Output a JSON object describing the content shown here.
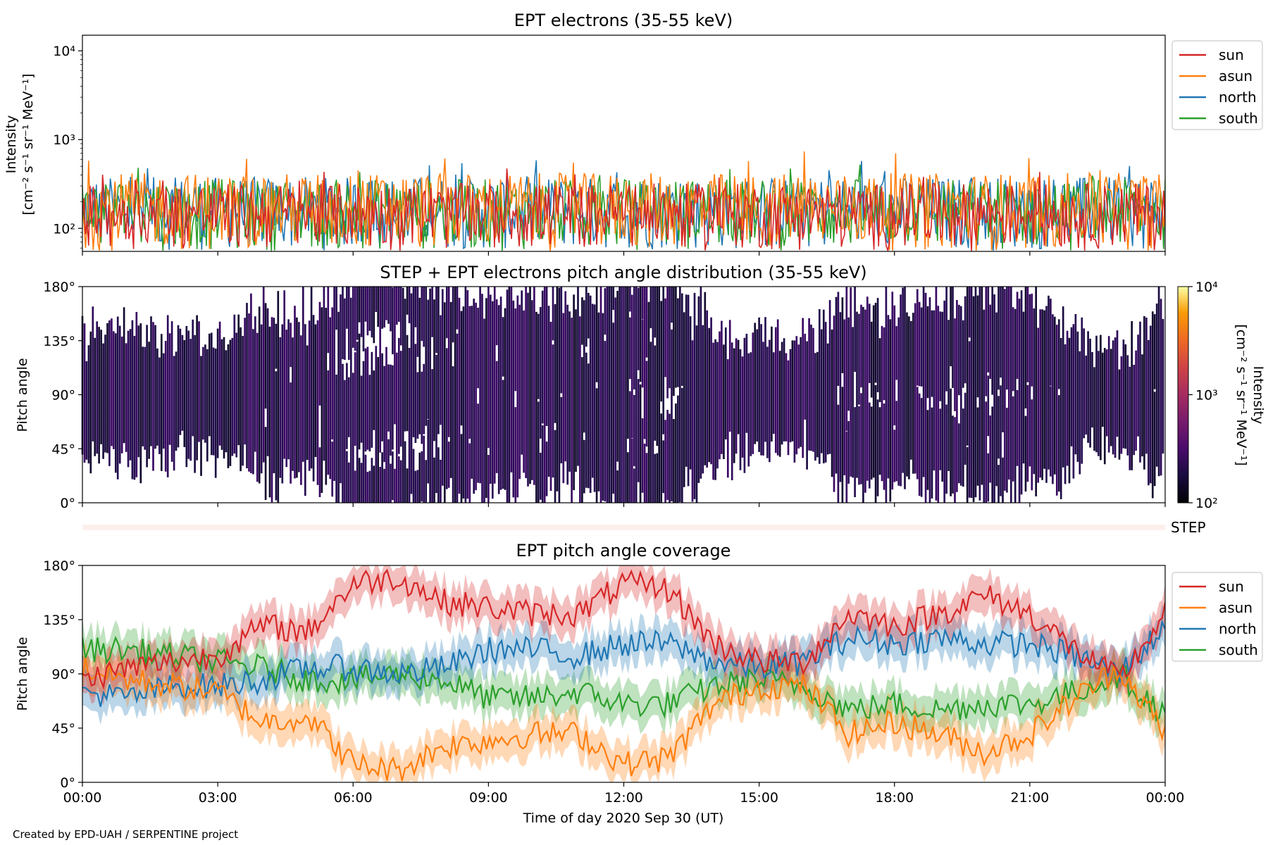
{
  "chart_data": [
    {
      "type": "line",
      "title": "EPT electrons (35-55 keV)",
      "ylabel": [
        "Intensity",
        "[cm⁻² s⁻¹ sr⁻¹ MeV⁻¹]"
      ],
      "yscale": "log",
      "ylim": [
        55,
        15000
      ],
      "yticks": [
        {
          "value": 100,
          "label": "10²"
        },
        {
          "value": 1000,
          "label": "10³"
        },
        {
          "value": 10000,
          "label": "10⁴"
        }
      ],
      "xlim": [
        "2020-09-30 00:00",
        "2020-10-01 00:00"
      ],
      "legend": {
        "placement": "right, outside top",
        "entries": [
          "sun",
          "asun",
          "north",
          "south"
        ]
      },
      "series": [
        {
          "name": "sun",
          "color": "#d62728",
          "typical_range": [
            55,
            320
          ],
          "peak": 480
        },
        {
          "name": "asun",
          "color": "#ff7f0e",
          "typical_range": [
            55,
            420
          ],
          "peak": 760
        },
        {
          "name": "north",
          "color": "#1f77b4",
          "typical_range": [
            55,
            380
          ],
          "peak": 600
        },
        {
          "name": "south",
          "color": "#2ca02c",
          "typical_range": [
            55,
            360
          ],
          "peak": 560
        }
      ]
    },
    {
      "type": "heatmap",
      "title": "STEP + EPT electrons pitch angle distribution (35-55 keV)",
      "ylabel": "Pitch angle",
      "ylim": [
        0,
        180
      ],
      "yticks": [
        "0°",
        "45°",
        "90°",
        "135°",
        "180°"
      ],
      "xlim": [
        "2020-09-30 00:00",
        "2020-10-01 00:00"
      ],
      "colorbar": {
        "label": [
          "Intensity",
          "[cm⁻² s⁻¹ sr⁻¹ MeV⁻¹]"
        ],
        "scale": "log",
        "range": [
          100,
          10000
        ],
        "ticks": [
          "10²",
          "10³",
          "10⁴"
        ],
        "colormap": "inferno"
      },
      "note": "dark purple bands of ~10² intensity tracing the four EPT telescope pitch angles"
    },
    {
      "type": "line",
      "label": "STEP",
      "note": "thin pale strip, no data drawn"
    },
    {
      "type": "line",
      "title": "EPT pitch angle coverage",
      "ylabel": "Pitch angle",
      "ylim": [
        0,
        180
      ],
      "yticks": [
        "0°",
        "45°",
        "90°",
        "135°",
        "180°"
      ],
      "xlim": [
        "2020-09-30 00:00",
        "2020-10-01 00:00"
      ],
      "x": [
        0,
        1,
        2,
        3,
        4,
        5,
        6,
        7,
        8,
        9,
        10,
        11,
        12,
        13,
        14,
        15,
        16,
        17,
        18,
        19,
        20,
        21,
        22,
        23,
        24
      ],
      "x_unit": "hours since 2020-09-30 00:00",
      "band": "shaded band of about ±15° around each line",
      "legend": {
        "placement": "right, outside top",
        "entries": [
          "sun",
          "asun",
          "north",
          "south"
        ]
      },
      "series": [
        {
          "name": "sun",
          "color": "#d62728",
          "values": [
            85,
            95,
            100,
            105,
            130,
            125,
            165,
            170,
            150,
            145,
            140,
            140,
            165,
            160,
            115,
            100,
            100,
            140,
            130,
            140,
            155,
            140,
            110,
            85,
            140
          ]
        },
        {
          "name": "asun",
          "color": "#ff7f0e",
          "values": [
            95,
            85,
            80,
            75,
            50,
            55,
            15,
            10,
            30,
            35,
            40,
            40,
            15,
            20,
            65,
            80,
            80,
            40,
            50,
            40,
            25,
            40,
            70,
            95,
            40
          ]
        },
        {
          "name": "north",
          "color": "#1f77b4",
          "values": [
            75,
            70,
            80,
            80,
            85,
            95,
            95,
            90,
            95,
            110,
            110,
            105,
            115,
            115,
            100,
            95,
            100,
            120,
            115,
            120,
            115,
            115,
            105,
            90,
            130
          ]
        },
        {
          "name": "south",
          "color": "#2ca02c",
          "values": [
            110,
            110,
            105,
            100,
            95,
            85,
            85,
            90,
            85,
            70,
            70,
            75,
            65,
            65,
            80,
            85,
            80,
            60,
            65,
            60,
            65,
            65,
            75,
            90,
            55
          ]
        }
      ]
    }
  ],
  "xaxis": {
    "label": "Time of day 2020 Sep 30 (UT)",
    "ticks": [
      "00:00",
      "03:00",
      "06:00",
      "09:00",
      "12:00",
      "15:00",
      "18:00",
      "21:00",
      "00:00"
    ]
  },
  "credit": "Created by EPD-UAH / SERPENTINE project"
}
